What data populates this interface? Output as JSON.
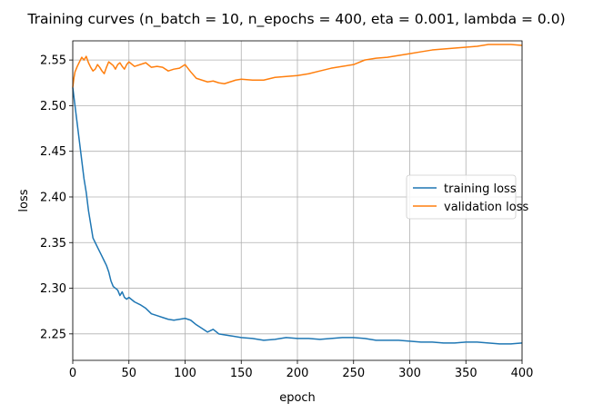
{
  "chart_data": {
    "type": "line",
    "title": "Training curves (n_batch = 10, n_epochs = 400, eta = 0.001, lambda = 0.0)",
    "xlabel": "epoch",
    "ylabel": "loss",
    "xlim": [
      0,
      400
    ],
    "ylim": [
      2.221,
      2.571
    ],
    "xticks": [
      0,
      50,
      100,
      150,
      200,
      250,
      300,
      350,
      400
    ],
    "yticks": [
      2.25,
      2.3,
      2.35,
      2.4,
      2.45,
      2.5,
      2.55
    ],
    "grid": true,
    "legend_position": "center-right",
    "series": [
      {
        "name": "training loss",
        "color": "#1f77b4",
        "points": [
          [
            0,
            2.52
          ],
          [
            2,
            2.5
          ],
          [
            4,
            2.48
          ],
          [
            6,
            2.46
          ],
          [
            8,
            2.44
          ],
          [
            10,
            2.42
          ],
          [
            12,
            2.405
          ],
          [
            14,
            2.385
          ],
          [
            16,
            2.37
          ],
          [
            18,
            2.355
          ],
          [
            20,
            2.35
          ],
          [
            22,
            2.345
          ],
          [
            24,
            2.34
          ],
          [
            26,
            2.335
          ],
          [
            28,
            2.33
          ],
          [
            30,
            2.325
          ],
          [
            32,
            2.318
          ],
          [
            34,
            2.308
          ],
          [
            36,
            2.302
          ],
          [
            38,
            2.3
          ],
          [
            40,
            2.298
          ],
          [
            42,
            2.292
          ],
          [
            44,
            2.296
          ],
          [
            46,
            2.29
          ],
          [
            48,
            2.288
          ],
          [
            50,
            2.29
          ],
          [
            55,
            2.285
          ],
          [
            60,
            2.282
          ],
          [
            65,
            2.278
          ],
          [
            70,
            2.272
          ],
          [
            75,
            2.27
          ],
          [
            80,
            2.268
          ],
          [
            85,
            2.266
          ],
          [
            90,
            2.265
          ],
          [
            95,
            2.266
          ],
          [
            100,
            2.267
          ],
          [
            105,
            2.265
          ],
          [
            110,
            2.26
          ],
          [
            115,
            2.256
          ],
          [
            120,
            2.252
          ],
          [
            125,
            2.255
          ],
          [
            130,
            2.25
          ],
          [
            140,
            2.248
          ],
          [
            150,
            2.246
          ],
          [
            160,
            2.245
          ],
          [
            170,
            2.243
          ],
          [
            180,
            2.244
          ],
          [
            190,
            2.246
          ],
          [
            200,
            2.245
          ],
          [
            210,
            2.245
          ],
          [
            220,
            2.244
          ],
          [
            230,
            2.245
          ],
          [
            240,
            2.246
          ],
          [
            250,
            2.246
          ],
          [
            260,
            2.245
          ],
          [
            270,
            2.243
          ],
          [
            280,
            2.243
          ],
          [
            290,
            2.243
          ],
          [
            300,
            2.242
          ],
          [
            310,
            2.241
          ],
          [
            320,
            2.241
          ],
          [
            330,
            2.24
          ],
          [
            340,
            2.24
          ],
          [
            350,
            2.241
          ],
          [
            360,
            2.241
          ],
          [
            370,
            2.24
          ],
          [
            380,
            2.239
          ],
          [
            390,
            2.239
          ],
          [
            400,
            2.24
          ]
        ]
      },
      {
        "name": "validation loss",
        "color": "#ff7f0e",
        "points": [
          [
            0,
            2.52
          ],
          [
            1,
            2.53
          ],
          [
            2,
            2.537
          ],
          [
            4,
            2.543
          ],
          [
            6,
            2.548
          ],
          [
            8,
            2.553
          ],
          [
            10,
            2.55
          ],
          [
            12,
            2.554
          ],
          [
            14,
            2.547
          ],
          [
            16,
            2.542
          ],
          [
            18,
            2.538
          ],
          [
            20,
            2.54
          ],
          [
            22,
            2.545
          ],
          [
            24,
            2.542
          ],
          [
            26,
            2.538
          ],
          [
            28,
            2.535
          ],
          [
            30,
            2.542
          ],
          [
            32,
            2.548
          ],
          [
            34,
            2.546
          ],
          [
            36,
            2.544
          ],
          [
            38,
            2.54
          ],
          [
            40,
            2.545
          ],
          [
            42,
            2.547
          ],
          [
            44,
            2.543
          ],
          [
            46,
            2.54
          ],
          [
            48,
            2.545
          ],
          [
            50,
            2.548
          ],
          [
            55,
            2.543
          ],
          [
            60,
            2.545
          ],
          [
            65,
            2.547
          ],
          [
            70,
            2.542
          ],
          [
            75,
            2.543
          ],
          [
            80,
            2.542
          ],
          [
            85,
            2.538
          ],
          [
            90,
            2.54
          ],
          [
            95,
            2.541
          ],
          [
            100,
            2.545
          ],
          [
            105,
            2.537
          ],
          [
            110,
            2.53
          ],
          [
            115,
            2.528
          ],
          [
            120,
            2.526
          ],
          [
            125,
            2.527
          ],
          [
            130,
            2.525
          ],
          [
            135,
            2.524
          ],
          [
            140,
            2.526
          ],
          [
            145,
            2.528
          ],
          [
            150,
            2.529
          ],
          [
            160,
            2.528
          ],
          [
            170,
            2.528
          ],
          [
            180,
            2.531
          ],
          [
            190,
            2.532
          ],
          [
            200,
            2.533
          ],
          [
            210,
            2.535
          ],
          [
            220,
            2.538
          ],
          [
            230,
            2.541
          ],
          [
            240,
            2.543
          ],
          [
            250,
            2.545
          ],
          [
            260,
            2.55
          ],
          [
            270,
            2.552
          ],
          [
            280,
            2.553
          ],
          [
            290,
            2.555
          ],
          [
            300,
            2.557
          ],
          [
            310,
            2.559
          ],
          [
            320,
            2.561
          ],
          [
            330,
            2.562
          ],
          [
            340,
            2.563
          ],
          [
            350,
            2.564
          ],
          [
            360,
            2.565
          ],
          [
            370,
            2.567
          ],
          [
            380,
            2.567
          ],
          [
            390,
            2.567
          ],
          [
            400,
            2.566
          ]
        ]
      }
    ]
  }
}
